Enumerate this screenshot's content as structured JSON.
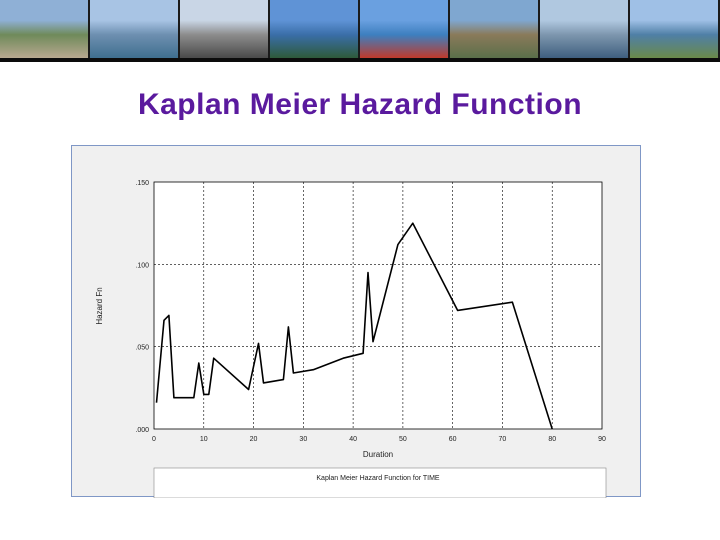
{
  "slide": {
    "title": "Kaplan Meier Hazard Function"
  },
  "banner": {
    "photos": [
      {
        "name": "hill-village-photo",
        "sky": "#8fb0d6",
        "mid": "#6f8a5a",
        "low": "#b8a890"
      },
      {
        "name": "lakeside-town-photo",
        "sky": "#a8c4e4",
        "mid": "#6d8fb0",
        "low": "#3f6f8f"
      },
      {
        "name": "promenade-photo",
        "sky": "#c9d6e6",
        "mid": "#8c8c8c",
        "low": "#4a4a4a"
      },
      {
        "name": "lake-palm-photo",
        "sky": "#5f93d6",
        "mid": "#3a6ea8",
        "low": "#2e5a3a"
      },
      {
        "name": "flower-garden-photo",
        "sky": "#6aa0e0",
        "mid": "#3d7fbf",
        "low": "#c0392b"
      },
      {
        "name": "city-bay-photo",
        "sky": "#7fa7d0",
        "mid": "#8a7a5a",
        "low": "#5a6f4a"
      },
      {
        "name": "mountain-lake-photo",
        "sky": "#b0c8e0",
        "mid": "#7d96ae",
        "low": "#3f5f7f"
      },
      {
        "name": "lakefront-walk-photo",
        "sky": "#9fc0e6",
        "mid": "#4f7fa6",
        "low": "#6a8a4a"
      }
    ]
  },
  "chart_data": {
    "type": "line",
    "xlabel": "Duration",
    "ylabel": "Hazard Fn",
    "xlim": [
      0,
      90
    ],
    "ylim": [
      0.0,
      0.15
    ],
    "x_ticks": [
      "0",
      "10",
      "20",
      "30",
      "40",
      "50",
      "60",
      "70",
      "80",
      "90"
    ],
    "y_ticks": [
      ".000",
      ".050",
      ".100",
      ".150"
    ],
    "grid": true,
    "legend": "Kaplan Meier Hazard Function for TIME",
    "legend_position": "bottom",
    "series": [
      {
        "x": [
          0.5,
          2,
          3,
          4,
          8,
          9,
          10,
          11,
          12,
          19,
          21,
          22,
          26,
          27,
          28,
          32,
          38,
          42,
          43,
          44,
          49,
          52,
          61,
          72,
          80
        ],
        "y": [
          0.016,
          0.066,
          0.069,
          0.019,
          0.019,
          0.04,
          0.021,
          0.021,
          0.043,
          0.024,
          0.052,
          0.028,
          0.03,
          0.062,
          0.034,
          0.036,
          0.043,
          0.046,
          0.095,
          0.053,
          0.112,
          0.125,
          0.072,
          0.077,
          0.0
        ]
      }
    ]
  }
}
